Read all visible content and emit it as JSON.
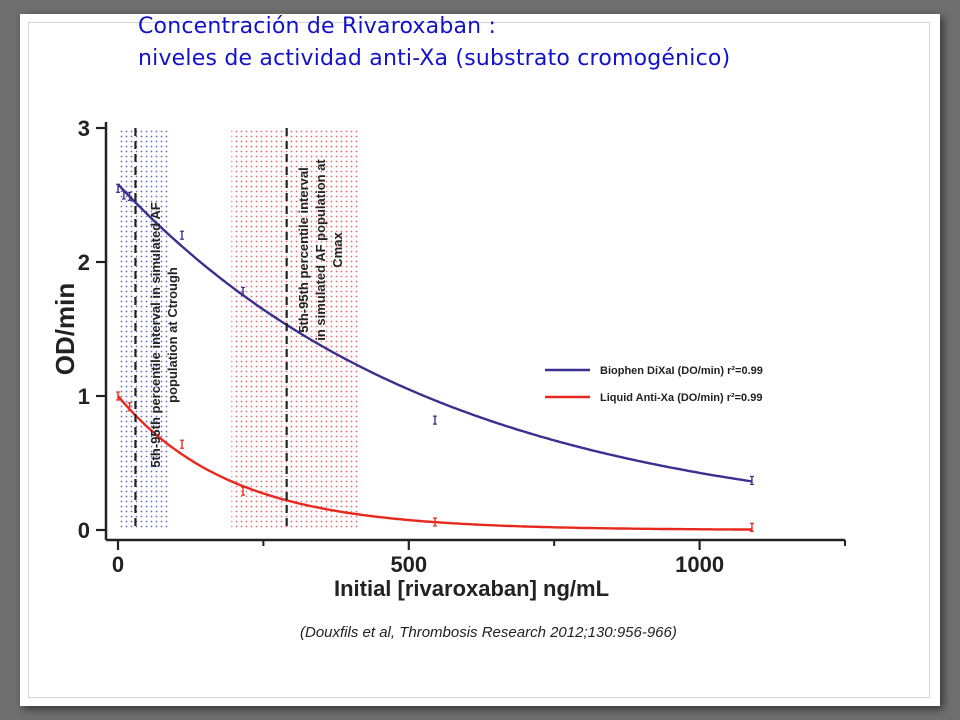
{
  "slide": {
    "title_line1": "Concentración de Rivaroxaban :",
    "title_line2": "niveles de actividad anti-Xa (substrato cromogénico)",
    "citation": "(Douxfils et al, Thrombosis Research 2012;130:956-966)"
  },
  "chart_data": {
    "type": "scatter",
    "xlabel": "Initial [rivaroxaban] ng/mL",
    "ylabel": "OD/min",
    "xlim": [
      0,
      1250
    ],
    "ylim": [
      0,
      3
    ],
    "xticks": [
      0,
      500,
      1000
    ],
    "yticks": [
      0,
      1,
      2,
      3
    ],
    "x_minor_ticks": [
      250,
      750,
      1250
    ],
    "grid": false,
    "legend_position": "center-right",
    "series": [
      {
        "name": "Biophen DiXaI (DO/min) r²=0.99",
        "color": "#3b2f8f",
        "points": [
          {
            "x": 0,
            "y": 2.55
          },
          {
            "x": 10,
            "y": 2.5
          },
          {
            "x": 20,
            "y": 2.49
          },
          {
            "x": 110,
            "y": 2.2
          },
          {
            "x": 215,
            "y": 1.78
          },
          {
            "x": 545,
            "y": 0.82
          },
          {
            "x": 1090,
            "y": 0.37
          }
        ],
        "fit": {
          "model": "exponential decay",
          "a": 2.58,
          "k": 0.0018
        }
      },
      {
        "name": "Liquid Anti-Xa (DO/min) r²=0.99",
        "color": "#e8281e",
        "points": [
          {
            "x": 0,
            "y": 1.0
          },
          {
            "x": 20,
            "y": 0.92
          },
          {
            "x": 110,
            "y": 0.64
          },
          {
            "x": 215,
            "y": 0.29
          },
          {
            "x": 545,
            "y": 0.06
          },
          {
            "x": 1090,
            "y": 0.02
          }
        ],
        "fit": {
          "model": "exponential decay",
          "a": 1.0,
          "k": 0.0052
        }
      }
    ],
    "reference_lines": [
      {
        "x": 30,
        "style": "dashed"
      },
      {
        "x": 290,
        "style": "dashed"
      }
    ],
    "shaded_regions": [
      {
        "x_from": 0,
        "x_to": 85,
        "color": "#2a3aa8",
        "label": "5th-95th percentile interval in simulated AF population at Ctrough"
      },
      {
        "x_from": 195,
        "x_to": 415,
        "color": "#e8303a",
        "label": "5th-95th percentile interval in simulated AF population at Cmax"
      }
    ]
  }
}
